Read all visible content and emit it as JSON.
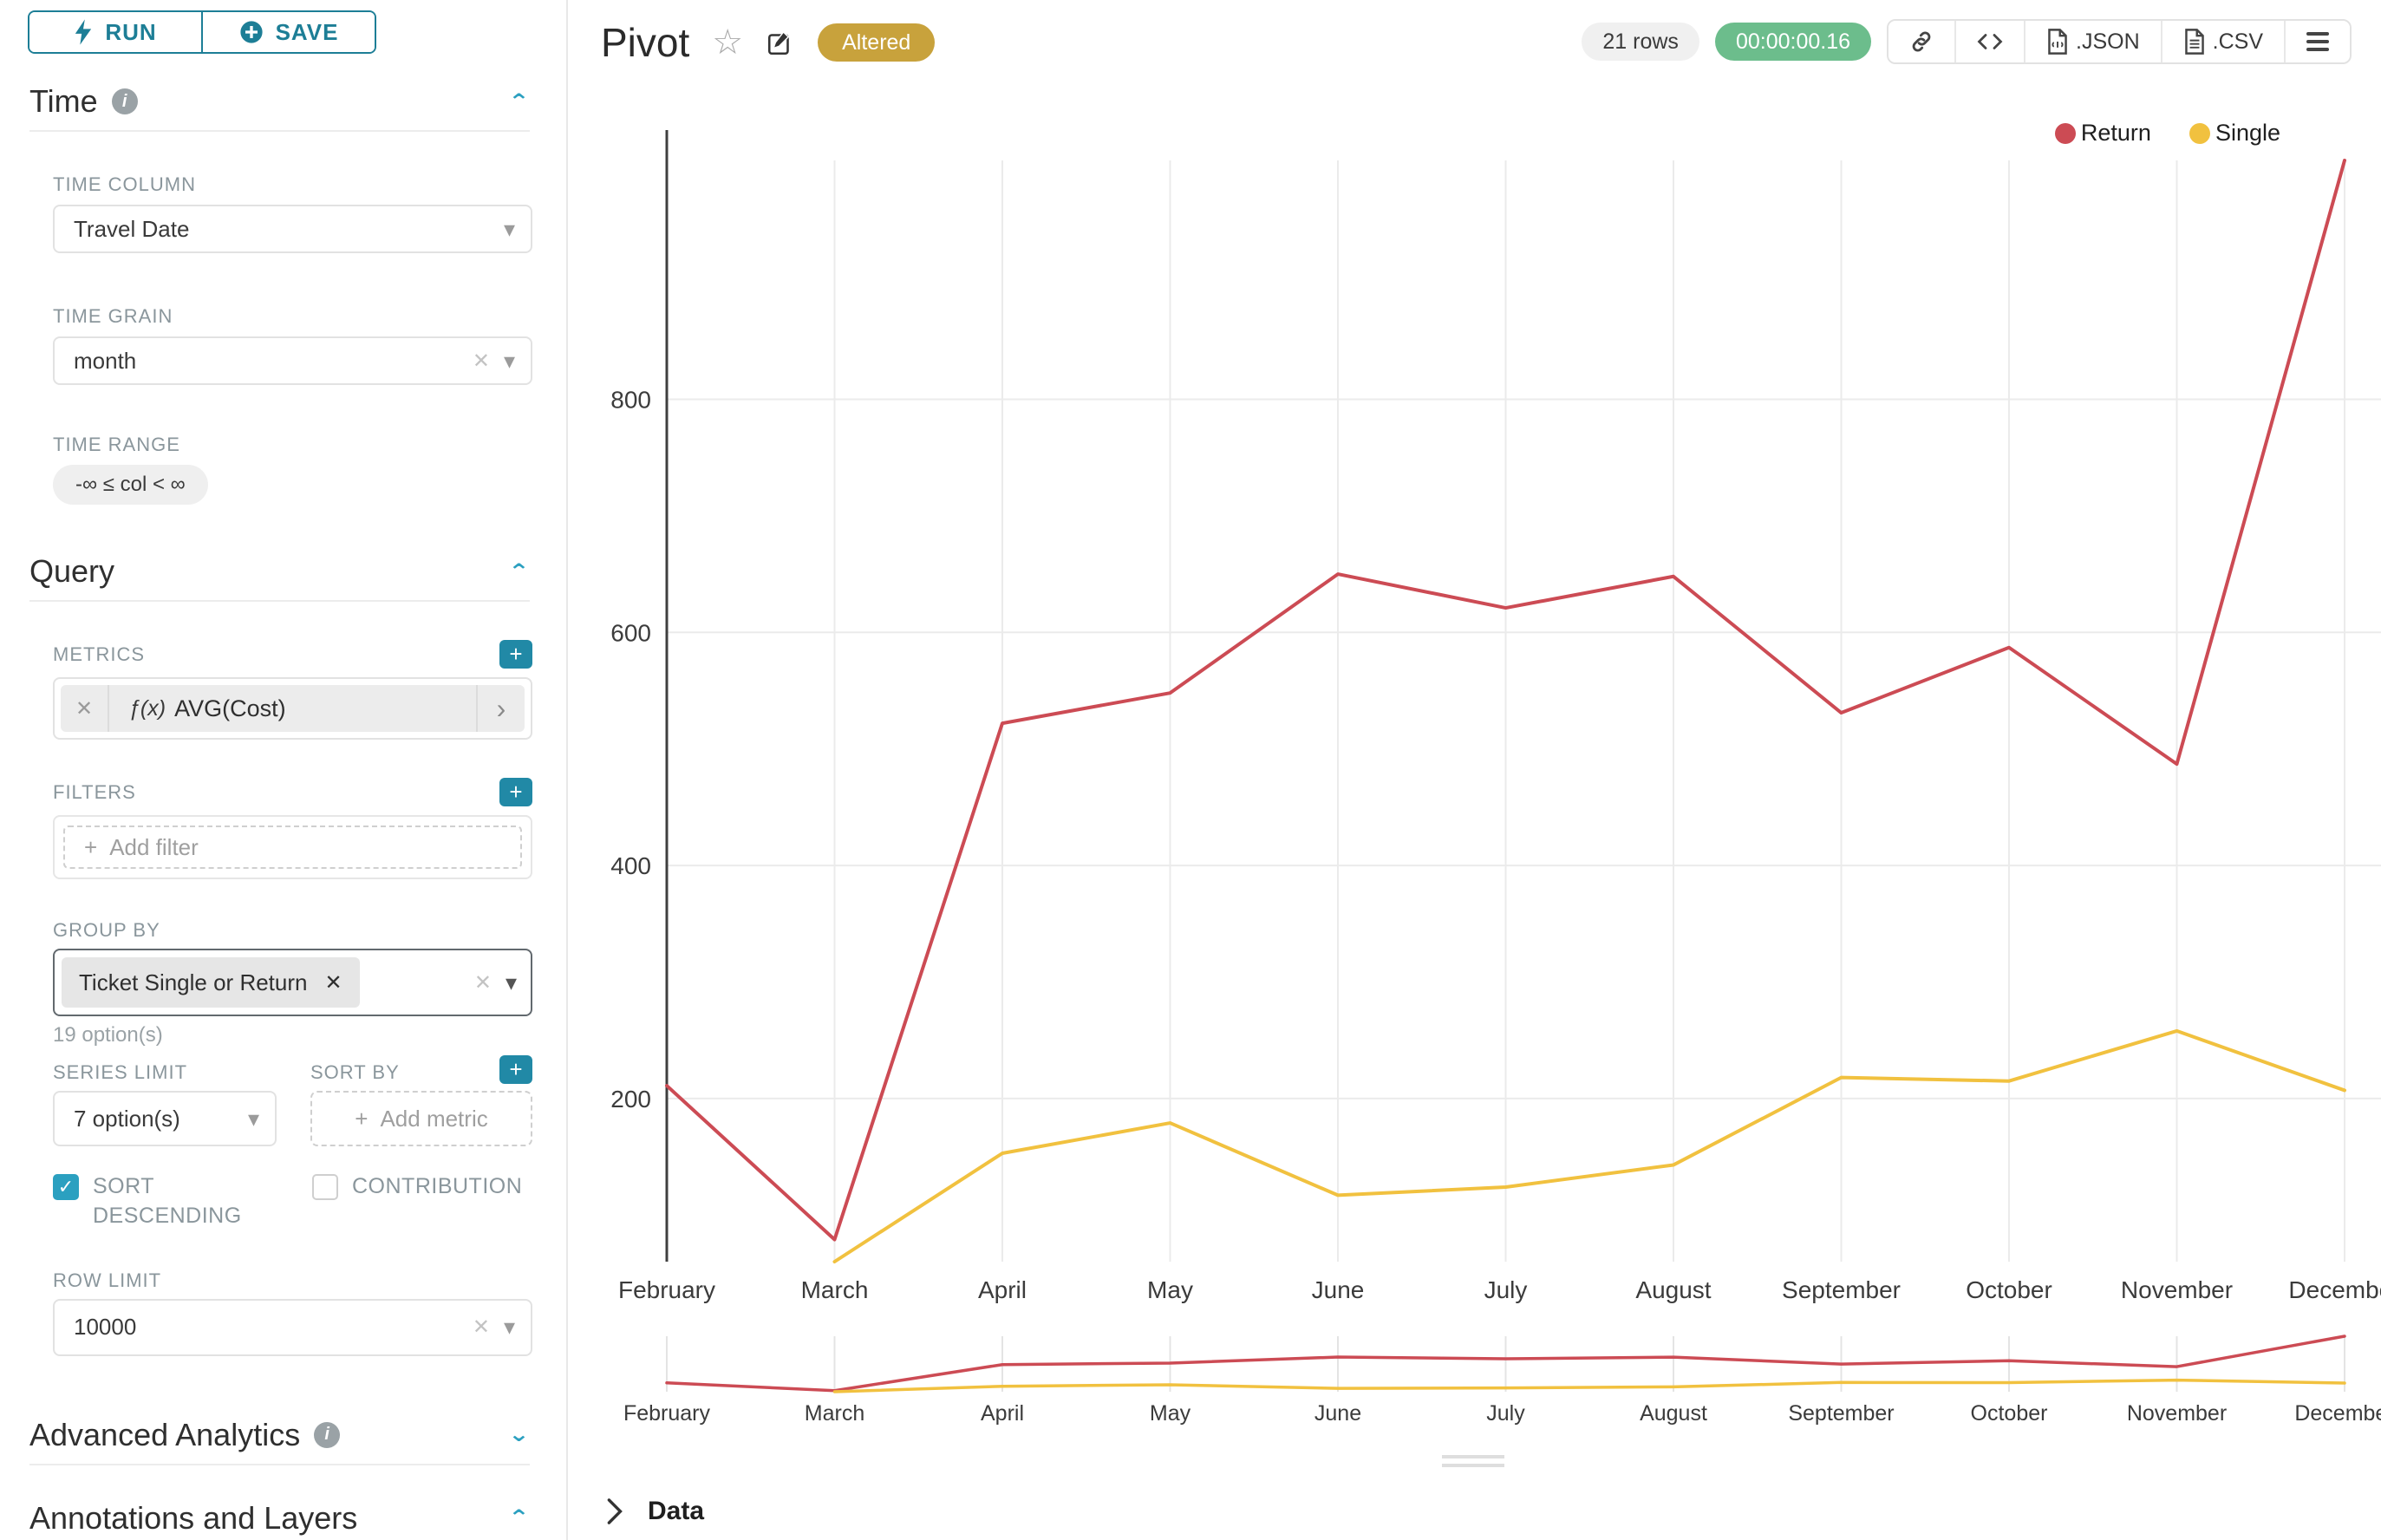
{
  "sidebar": {
    "run_label": "RUN",
    "save_label": "SAVE",
    "time_section": {
      "title": "Time",
      "time_column": {
        "label": "TIME COLUMN",
        "value": "Travel Date"
      },
      "time_grain": {
        "label": "TIME GRAIN",
        "value": "month"
      },
      "time_range": {
        "label": "TIME RANGE",
        "value": "-∞ ≤ col < ∞"
      }
    },
    "query_section": {
      "title": "Query",
      "metrics": {
        "label": "METRICS",
        "fx_prefix": "ƒ(x)",
        "value": "AVG(Cost)"
      },
      "filters": {
        "label": "FILTERS",
        "placeholder": "Add filter"
      },
      "group_by": {
        "label": "GROUP BY",
        "chip": "Ticket Single or Return",
        "options_hint": "19 option(s)"
      },
      "series_limit": {
        "label": "SERIES LIMIT",
        "value": "7 option(s)"
      },
      "sort_by": {
        "label": "SORT BY",
        "placeholder": "Add metric"
      },
      "sort_descending": {
        "label": "SORT DESCENDING",
        "checked": true
      },
      "contribution": {
        "label": "CONTRIBUTION",
        "checked": false
      },
      "row_limit": {
        "label": "ROW LIMIT",
        "value": "10000"
      }
    },
    "advanced_section": {
      "title": "Advanced Analytics"
    },
    "annotations_section": {
      "title": "Annotations and Layers"
    }
  },
  "header": {
    "title": "Pivot",
    "altered_badge": "Altered",
    "rows_badge": "21 rows",
    "timer": "00:00:00.16",
    "json_label": ".JSON",
    "csv_label": ".CSV"
  },
  "glyphs": {
    "clear": "✕",
    "caret": "▾",
    "chevron_up": "⌃",
    "chevron_down": "⌄",
    "chevron_right": "›",
    "plus": "+",
    "check": "✓",
    "star": "☆",
    "info": "i"
  },
  "chart_data": {
    "type": "line",
    "categories": [
      "February",
      "March",
      "April",
      "May",
      "June",
      "July",
      "August",
      "September",
      "October",
      "November",
      "December"
    ],
    "series": [
      {
        "name": "Return",
        "color": "#cc4b54",
        "values": [
          211,
          79,
          522,
          548,
          650,
          621,
          648,
          531,
          587,
          487,
          1005
        ]
      },
      {
        "name": "Single",
        "color": "#f1c13f",
        "values": [
          null,
          60,
          153,
          179,
          117,
          124,
          143,
          218,
          215,
          258,
          207
        ]
      }
    ],
    "ylim": [
      60,
      1005
    ],
    "yticks": [
      200,
      400,
      600,
      800
    ],
    "grid": true,
    "legend_position": "top-right",
    "title": "",
    "xlabel": "",
    "ylabel": "",
    "has_range_preview": true
  },
  "data_panel": {
    "label": "Data"
  },
  "colors": {
    "accent_teal": "#1d7e96",
    "chevron_teal": "#2ba0c0",
    "altered_gold": "#c8a23c",
    "timer_green": "#6cbd8c",
    "grid_line": "#ebebeb",
    "axis_line": "#3f3f3f"
  }
}
